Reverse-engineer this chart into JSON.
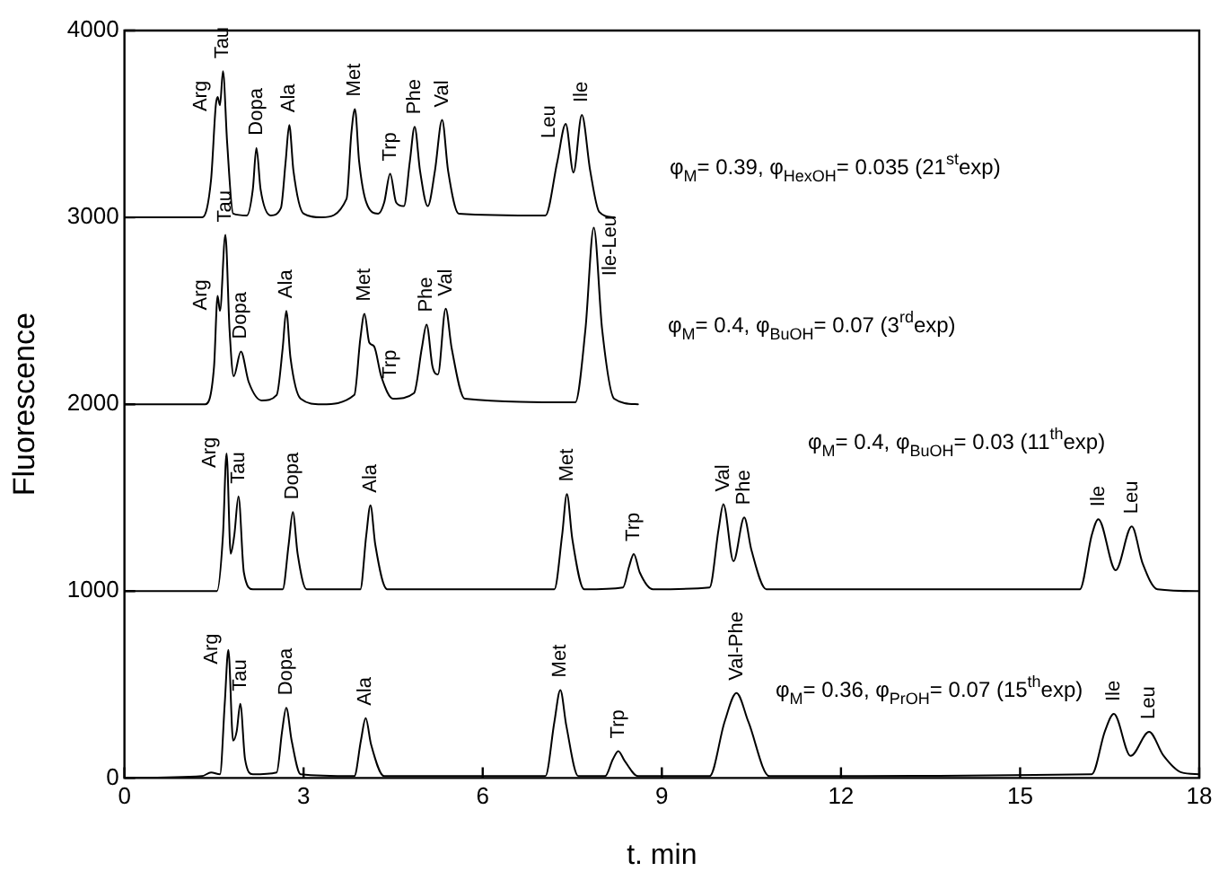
{
  "chart_data": {
    "type": "line",
    "xlabel": "t. min",
    "ylabel": "Fluorescence",
    "xlim": [
      0,
      18
    ],
    "xticks": [
      0,
      3,
      6,
      9,
      12,
      15,
      18
    ],
    "ylim": [
      0,
      4000
    ],
    "yticks": [
      0,
      1000,
      2000,
      3000,
      4000
    ],
    "grid": false,
    "legend": false,
    "marker": "none",
    "line_style": "solid",
    "series": [
      {
        "name": "φ$_{M}$= 0.39, φ$_{HexOH}$= 0.035 (21$^{st}$exp)",
        "color": "#000000",
        "x": [
          0,
          1.3,
          1.45,
          1.53,
          1.56,
          1.6,
          1.65,
          1.72,
          1.82,
          2.05,
          2.15,
          2.21,
          2.28,
          2.45,
          2.62,
          2.7,
          2.76,
          2.83,
          3.0,
          3.3,
          3.72,
          3.8,
          3.86,
          3.93,
          4.05,
          4.25,
          4.35,
          4.45,
          4.55,
          4.68,
          4.78,
          4.86,
          4.95,
          5.08,
          5.2,
          5.32,
          5.42,
          5.6,
          7.05,
          7.25,
          7.39,
          7.52,
          7.66,
          7.8,
          7.95,
          8.2
        ],
        "values": [
          3000,
          3000,
          3200,
          3600,
          3644,
          3600,
          3782,
          3400,
          3020,
          3010,
          3150,
          3372,
          3150,
          3010,
          3050,
          3300,
          3494,
          3250,
          3020,
          3000,
          3100,
          3450,
          3580,
          3300,
          3080,
          3020,
          3080,
          3234,
          3080,
          3060,
          3300,
          3485,
          3250,
          3060,
          3250,
          3522,
          3250,
          3020,
          3010,
          3300,
          3500,
          3240,
          3548,
          3250,
          3030,
          3000
        ]
      },
      {
        "name": "φ$_{M}$= 0.4, φ$_{BuOH}$= 0.07 (3$^{rd}$exp)",
        "color": "#000000",
        "x": [
          0,
          1.35,
          1.5,
          1.56,
          1.6,
          1.69,
          1.76,
          1.83,
          1.95,
          2.08,
          2.3,
          2.55,
          2.65,
          2.71,
          2.78,
          2.95,
          3.3,
          3.85,
          3.95,
          4.02,
          4.1,
          4.18,
          4.3,
          4.5,
          4.85,
          4.98,
          5.06,
          5.16,
          5.25,
          5.38,
          5.48,
          5.7,
          7.55,
          7.72,
          7.86,
          8.0,
          8.2,
          8.6
        ],
        "values": [
          2000,
          2000,
          2200,
          2580,
          2500,
          2907,
          2400,
          2150,
          2282,
          2120,
          2020,
          2050,
          2300,
          2500,
          2250,
          2030,
          2000,
          2050,
          2350,
          2484,
          2330,
          2310,
          2150,
          2030,
          2060,
          2300,
          2426,
          2200,
          2160,
          2512,
          2300,
          2030,
          2010,
          2400,
          2945,
          2400,
          2030,
          2000
        ]
      },
      {
        "name": "φ$_{M}$= 0.4, φ$_{BuOH}$= 0.03 (11$^{th}$exp)",
        "color": "#000000",
        "x": [
          0,
          1.55,
          1.65,
          1.71,
          1.78,
          1.84,
          1.91,
          2.0,
          2.15,
          2.65,
          2.75,
          2.82,
          2.9,
          3.05,
          3.95,
          4.05,
          4.12,
          4.2,
          4.4,
          7.2,
          7.33,
          7.41,
          7.5,
          7.7,
          8.35,
          8.45,
          8.53,
          8.63,
          8.85,
          9.8,
          9.95,
          10.03,
          10.2,
          10.38,
          10.5,
          10.75,
          16.0,
          16.2,
          16.31,
          16.6,
          16.87,
          17.05,
          17.3,
          18
        ],
        "values": [
          1000,
          1000,
          1300,
          1737,
          1200,
          1300,
          1507,
          1100,
          1010,
          1010,
          1250,
          1423,
          1200,
          1010,
          1010,
          1300,
          1459,
          1250,
          1010,
          1010,
          1300,
          1519,
          1280,
          1010,
          1020,
          1130,
          1199,
          1100,
          1010,
          1020,
          1330,
          1465,
          1160,
          1394,
          1220,
          1010,
          1010,
          1300,
          1385,
          1112,
          1346,
          1150,
          1010,
          1000
        ]
      },
      {
        "name": "φ$_{M}$= 0.36, φ$_{PrOH}$= 0.07 (15$^{th}$exp)",
        "color": "#000000",
        "x": [
          0,
          1.3,
          1.45,
          1.6,
          1.68,
          1.74,
          1.82,
          1.88,
          1.94,
          2.02,
          2.15,
          2.55,
          2.64,
          2.71,
          2.8,
          2.95,
          3.85,
          3.96,
          4.04,
          4.13,
          4.35,
          7.05,
          7.2,
          7.3,
          7.4,
          7.6,
          8.05,
          8.18,
          8.27,
          8.38,
          8.6,
          9.8,
          10.05,
          10.25,
          10.45,
          10.8,
          16.2,
          16.42,
          16.57,
          16.85,
          17.16,
          17.4,
          17.7,
          18
        ],
        "values": [
          0,
          10,
          30,
          20,
          400,
          686,
          200,
          250,
          397,
          100,
          20,
          30,
          250,
          375,
          200,
          20,
          10,
          200,
          320,
          180,
          10,
          10,
          300,
          471,
          280,
          10,
          10,
          100,
          144,
          90,
          10,
          10,
          300,
          455,
          300,
          10,
          20,
          250,
          343,
          118,
          247,
          120,
          30,
          20
        ]
      }
    ],
    "annotations": [
      {
        "text": "Arg",
        "x": 1.56,
        "y": 3644
      },
      {
        "text": "Tau",
        "x": 1.65,
        "y": 3782
      },
      {
        "text": "Dopa",
        "x": 2.21,
        "y": 3372
      },
      {
        "text": "Ala",
        "x": 2.76,
        "y": 3494
      },
      {
        "text": "Met",
        "x": 3.86,
        "y": 3580
      },
      {
        "text": "Trp",
        "x": 4.45,
        "y": 3234
      },
      {
        "text": "Phe",
        "x": 4.86,
        "y": 3485
      },
      {
        "text": "Val",
        "x": 5.32,
        "y": 3522
      },
      {
        "text": "Leu",
        "x": 7.39,
        "y": 3500
      },
      {
        "text": "Ile",
        "x": 7.66,
        "y": 3548
      },
      {
        "text": "Arg",
        "x": 1.56,
        "y": 2580
      },
      {
        "text": "Tau",
        "x": 1.69,
        "y": 2907
      },
      {
        "text": "Dopa",
        "x": 1.95,
        "y": 2282
      },
      {
        "text": "Ala",
        "x": 2.71,
        "y": 2500
      },
      {
        "text": "Met",
        "x": 4.02,
        "y": 2484
      },
      {
        "text": "Trp",
        "x": 4.18,
        "y": 2310
      },
      {
        "text": "Phe",
        "x": 5.06,
        "y": 2426
      },
      {
        "text": "Val",
        "x": 5.38,
        "y": 2512
      },
      {
        "text": "Ile-Leu",
        "x": 7.86,
        "y": 2945
      },
      {
        "text": "Arg",
        "x": 1.71,
        "y": 1737
      },
      {
        "text": "Tau",
        "x": 1.91,
        "y": 1507
      },
      {
        "text": "Dopa",
        "x": 2.82,
        "y": 1423
      },
      {
        "text": "Ala",
        "x": 4.12,
        "y": 1459
      },
      {
        "text": "Met",
        "x": 7.41,
        "y": 1519
      },
      {
        "text": "Trp",
        "x": 8.53,
        "y": 1199
      },
      {
        "text": "Val",
        "x": 10.03,
        "y": 1465
      },
      {
        "text": "Phe",
        "x": 10.38,
        "y": 1394
      },
      {
        "text": "Ile",
        "x": 16.31,
        "y": 1385
      },
      {
        "text": "Leu",
        "x": 16.87,
        "y": 1346
      },
      {
        "text": "Arg",
        "x": 1.74,
        "y": 686
      },
      {
        "text": "Tau",
        "x": 1.94,
        "y": 397
      },
      {
        "text": "Dopa",
        "x": 2.71,
        "y": 375
      },
      {
        "text": "Ala",
        "x": 4.04,
        "y": 320
      },
      {
        "text": "Met",
        "x": 7.3,
        "y": 471
      },
      {
        "text": "Trp",
        "x": 8.27,
        "y": 144
      },
      {
        "text": "Val-Phe",
        "x": 10.25,
        "y": 455
      },
      {
        "text": "Ile",
        "x": 16.57,
        "y": 343
      },
      {
        "text": "Leu",
        "x": 17.16,
        "y": 247
      }
    ]
  }
}
